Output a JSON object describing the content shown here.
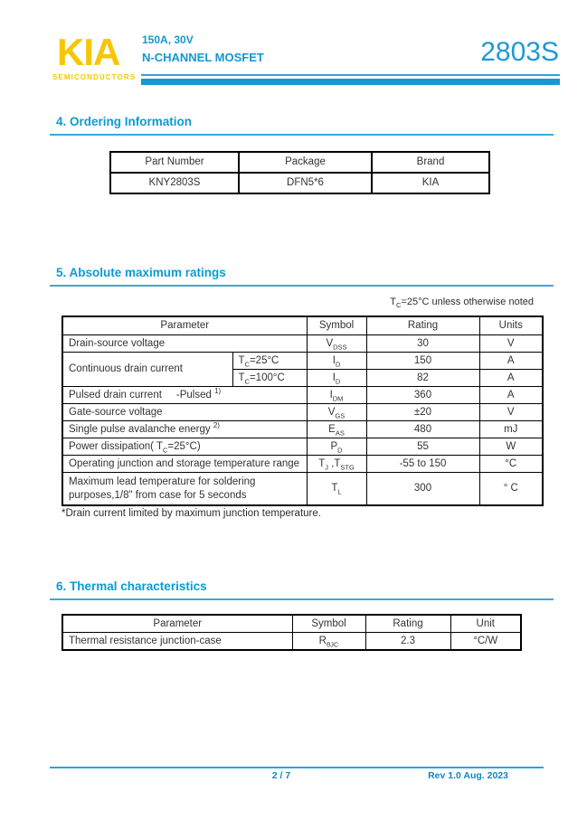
{
  "colors": {
    "accent_cyan": "#1898ce",
    "brand_yellow": "#f7c600",
    "footer_blue": "#0e86c8",
    "table_border": "#000000"
  },
  "brand": {
    "logo": "KIA",
    "subtitle": "SEMICONDUCTORS"
  },
  "header": {
    "spec_line1": "150A, 30V",
    "spec_line2": "N-CHANNEL MOSFET",
    "part_number": "2803S"
  },
  "ordering": {
    "title": "4. Ordering Information",
    "headers": [
      "Part Number",
      "Package",
      "Brand"
    ],
    "row": [
      "KNY2803S",
      "DFN5*6",
      "KIA"
    ]
  },
  "abs_max": {
    "title": "5. Absolute maximum ratings",
    "note": [
      {
        "t": "T"
      },
      {
        "sub": "C"
      },
      {
        "t": "=25°C unless otherwise noted"
      }
    ],
    "headers": {
      "parameter": "Parameter",
      "symbol": "Symbol",
      "rating": "Rating",
      "units": "Units"
    },
    "rows": {
      "vdss": {
        "parameter": [
          {
            "t": "Drain-source voltage"
          }
        ],
        "symbol": [
          {
            "t": "V"
          },
          {
            "sub": "DSS"
          }
        ],
        "rating": "30",
        "units": "V"
      },
      "id25": {
        "parameter": [
          {
            "t": "Continuous drain current"
          }
        ],
        "condition": [
          {
            "t": "T"
          },
          {
            "sub": "C"
          },
          {
            "t": "=25°C"
          }
        ],
        "symbol": [
          {
            "t": "I"
          },
          {
            "sub": "D"
          }
        ],
        "rating": "150",
        "units": "A"
      },
      "id100": {
        "condition": [
          {
            "t": "T"
          },
          {
            "sub": "C"
          },
          {
            "t": "=100°C"
          }
        ],
        "symbol": [
          {
            "t": "I"
          },
          {
            "sub": "D"
          }
        ],
        "rating": "82",
        "units": "A"
      },
      "idm": {
        "parameter": [
          {
            "t": "Pulsed drain current     -Pulsed "
          },
          {
            "sup": "1)"
          }
        ],
        "symbol": [
          {
            "t": "I"
          },
          {
            "sub": "DM"
          }
        ],
        "rating": "360",
        "units": "A"
      },
      "vgs": {
        "parameter": [
          {
            "t": "Gate-source voltage"
          }
        ],
        "symbol": [
          {
            "t": "V"
          },
          {
            "sub": "GS"
          }
        ],
        "rating": "±20",
        "units": "V"
      },
      "eas": {
        "parameter": [
          {
            "t": "Single pulse avalanche energy "
          },
          {
            "sup": "2)"
          }
        ],
        "symbol": [
          {
            "t": "E"
          },
          {
            "sub": "AS"
          }
        ],
        "rating": "480",
        "units": "mJ"
      },
      "pd": {
        "parameter": [
          {
            "t": "Power dissipation( T"
          },
          {
            "sub": "C"
          },
          {
            "t": "=25°C)"
          }
        ],
        "symbol": [
          {
            "t": "P"
          },
          {
            "sub": "D"
          }
        ],
        "rating": "55",
        "units": "W"
      },
      "tj": {
        "parameter": [
          {
            "t": "Operating junction and storage temperature range"
          }
        ],
        "symbol": [
          {
            "t": "T"
          },
          {
            "sub": "J"
          },
          {
            "t": " ,T"
          },
          {
            "sub": "STG"
          }
        ],
        "rating": "-55 to 150",
        "units": "°C"
      },
      "tl": {
        "parameter": [
          {
            "t": "Maximum lead temperature for soldering purposes,1/8\" from case for 5 seconds"
          }
        ],
        "symbol": [
          {
            "t": "T"
          },
          {
            "sub": "L"
          }
        ],
        "rating": "300",
        "units": "° C"
      }
    },
    "footnote": "*Drain current limited by maximum junction temperature."
  },
  "thermal": {
    "title": "6. Thermal characteristics",
    "headers": {
      "parameter": "Parameter",
      "symbol": "Symbol",
      "rating": "Rating",
      "unit": "Unit"
    },
    "row": {
      "parameter": [
        {
          "t": "Thermal resistance junction-case"
        }
      ],
      "symbol": [
        {
          "t": "R"
        },
        {
          "sub": "θJC"
        }
      ],
      "rating": "2.3",
      "unit": "°C/W"
    }
  },
  "footer": {
    "page": "2 / 7",
    "rev": "Rev 1.0 Aug. 2023"
  }
}
